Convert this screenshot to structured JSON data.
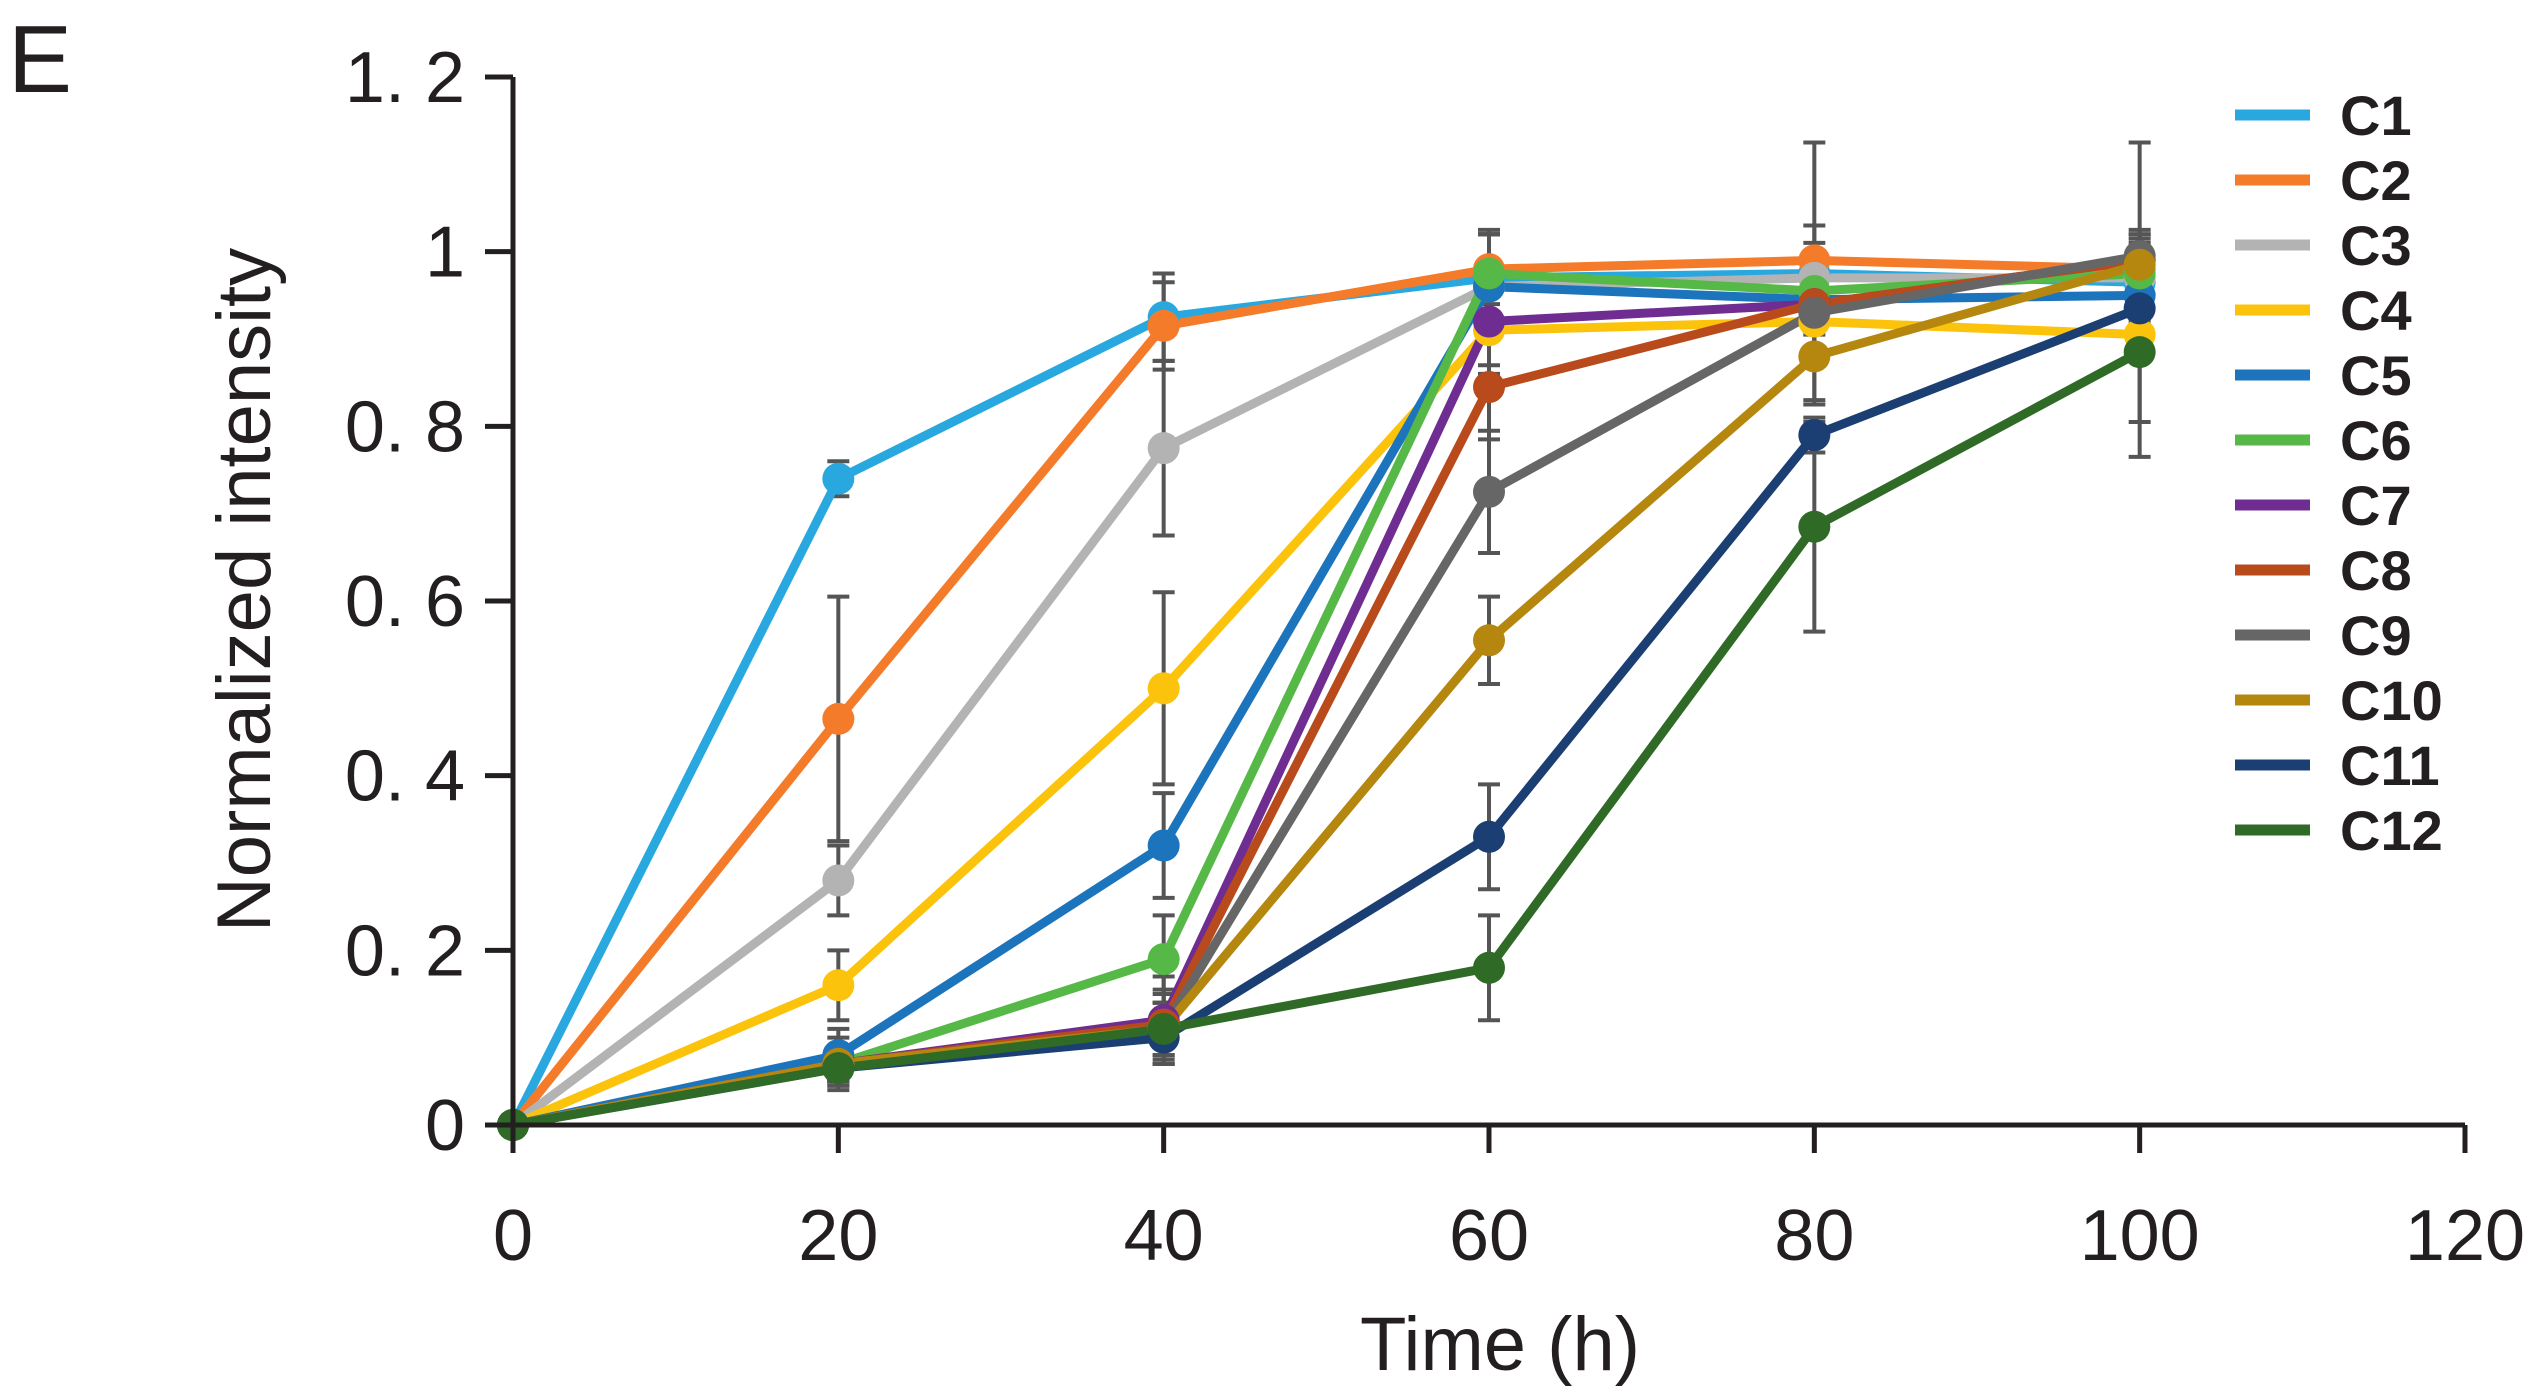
{
  "panel_label": "E",
  "chart_data": {
    "type": "line",
    "title": "",
    "xlabel": "Time (h)",
    "ylabel": "Normalized intensity",
    "x": [
      0,
      20,
      40,
      60,
      80,
      100
    ],
    "xlim": [
      0,
      120
    ],
    "ylim": [
      0,
      1.2
    ],
    "x_ticks": [
      0,
      20,
      40,
      60,
      80,
      100,
      120
    ],
    "x_tick_labels": [
      "0",
      "20",
      "40",
      "60",
      "80",
      "100",
      "120"
    ],
    "y_ticks": [
      0,
      0.2,
      0.4,
      0.6,
      0.8,
      1,
      1.2
    ],
    "y_tick_labels": [
      "0",
      "0. 2",
      "0. 4",
      "0. 6",
      "0. 8",
      "1",
      "1. 2"
    ],
    "grid": false,
    "legend_position": "right",
    "series": [
      {
        "name": "C1",
        "color": "#29a8e0",
        "values": [
          0,
          0.74,
          0.925,
          0.97,
          0.975,
          0.965
        ],
        "errors": [
          0,
          0.02,
          0.05,
          0.05,
          0.15,
          0.16
        ]
      },
      {
        "name": "C2",
        "color": "#f47b2a",
        "values": [
          0,
          0.465,
          0.915,
          0.98,
          0.99,
          0.98
        ],
        "errors": [
          0,
          0.14,
          0.05,
          0.04,
          0.04,
          0.03
        ]
      },
      {
        "name": "C3",
        "color": "#b3b3b3",
        "values": [
          0,
          0.28,
          0.775,
          0.96,
          0.97,
          0.97
        ],
        "errors": [
          0,
          0.04,
          0.1,
          0.06,
          0.04,
          0.03
        ]
      },
      {
        "name": "C4",
        "color": "#fcc30d",
        "values": [
          0,
          0.16,
          0.5,
          0.91,
          0.92,
          0.905
        ],
        "errors": [
          0,
          0.04,
          0.11,
          0.05,
          0.03,
          0.03
        ]
      },
      {
        "name": "C5",
        "color": "#1c75bc",
        "values": [
          0,
          0.08,
          0.32,
          0.96,
          0.945,
          0.95
        ],
        "errors": [
          0,
          0.03,
          0.06,
          0.06,
          0.04,
          0.03
        ]
      },
      {
        "name": "C6",
        "color": "#56b947",
        "values": [
          0,
          0.07,
          0.19,
          0.975,
          0.955,
          0.975
        ],
        "errors": [
          0,
          0.03,
          0.05,
          0.05,
          0.04,
          0.03
        ]
      },
      {
        "name": "C7",
        "color": "#6f2c91",
        "values": [
          0,
          0.07,
          0.12,
          0.92,
          0.94,
          0.99
        ],
        "errors": [
          0,
          0.02,
          0.05,
          0.05,
          0.03,
          0.03
        ]
      },
      {
        "name": "C8",
        "color": "#b94a1c",
        "values": [
          0,
          0.07,
          0.115,
          0.845,
          0.94,
          0.99
        ],
        "errors": [
          0,
          0.02,
          0.04,
          0.06,
          0.03,
          0.03
        ]
      },
      {
        "name": "C9",
        "color": "#666666",
        "values": [
          0,
          0.07,
          0.11,
          0.725,
          0.93,
          0.995
        ],
        "errors": [
          0,
          0.02,
          0.04,
          0.07,
          0.04,
          0.03
        ]
      },
      {
        "name": "C10",
        "color": "#b5870f",
        "values": [
          0,
          0.07,
          0.11,
          0.555,
          0.88,
          0.985
        ],
        "errors": [
          0,
          0.02,
          0.03,
          0.05,
          0.05,
          0.03
        ]
      },
      {
        "name": "C11",
        "color": "#1b3f73",
        "values": [
          0,
          0.065,
          0.1,
          0.33,
          0.79,
          0.935
        ],
        "errors": [
          0,
          0.02,
          0.03,
          0.06,
          0.02,
          0.03
        ]
      },
      {
        "name": "C12",
        "color": "#2f6a26",
        "values": [
          0,
          0.065,
          0.11,
          0.18,
          0.685,
          0.885
        ],
        "errors": [
          0,
          0.02,
          0.03,
          0.06,
          0.12,
          0.12
        ]
      }
    ]
  }
}
